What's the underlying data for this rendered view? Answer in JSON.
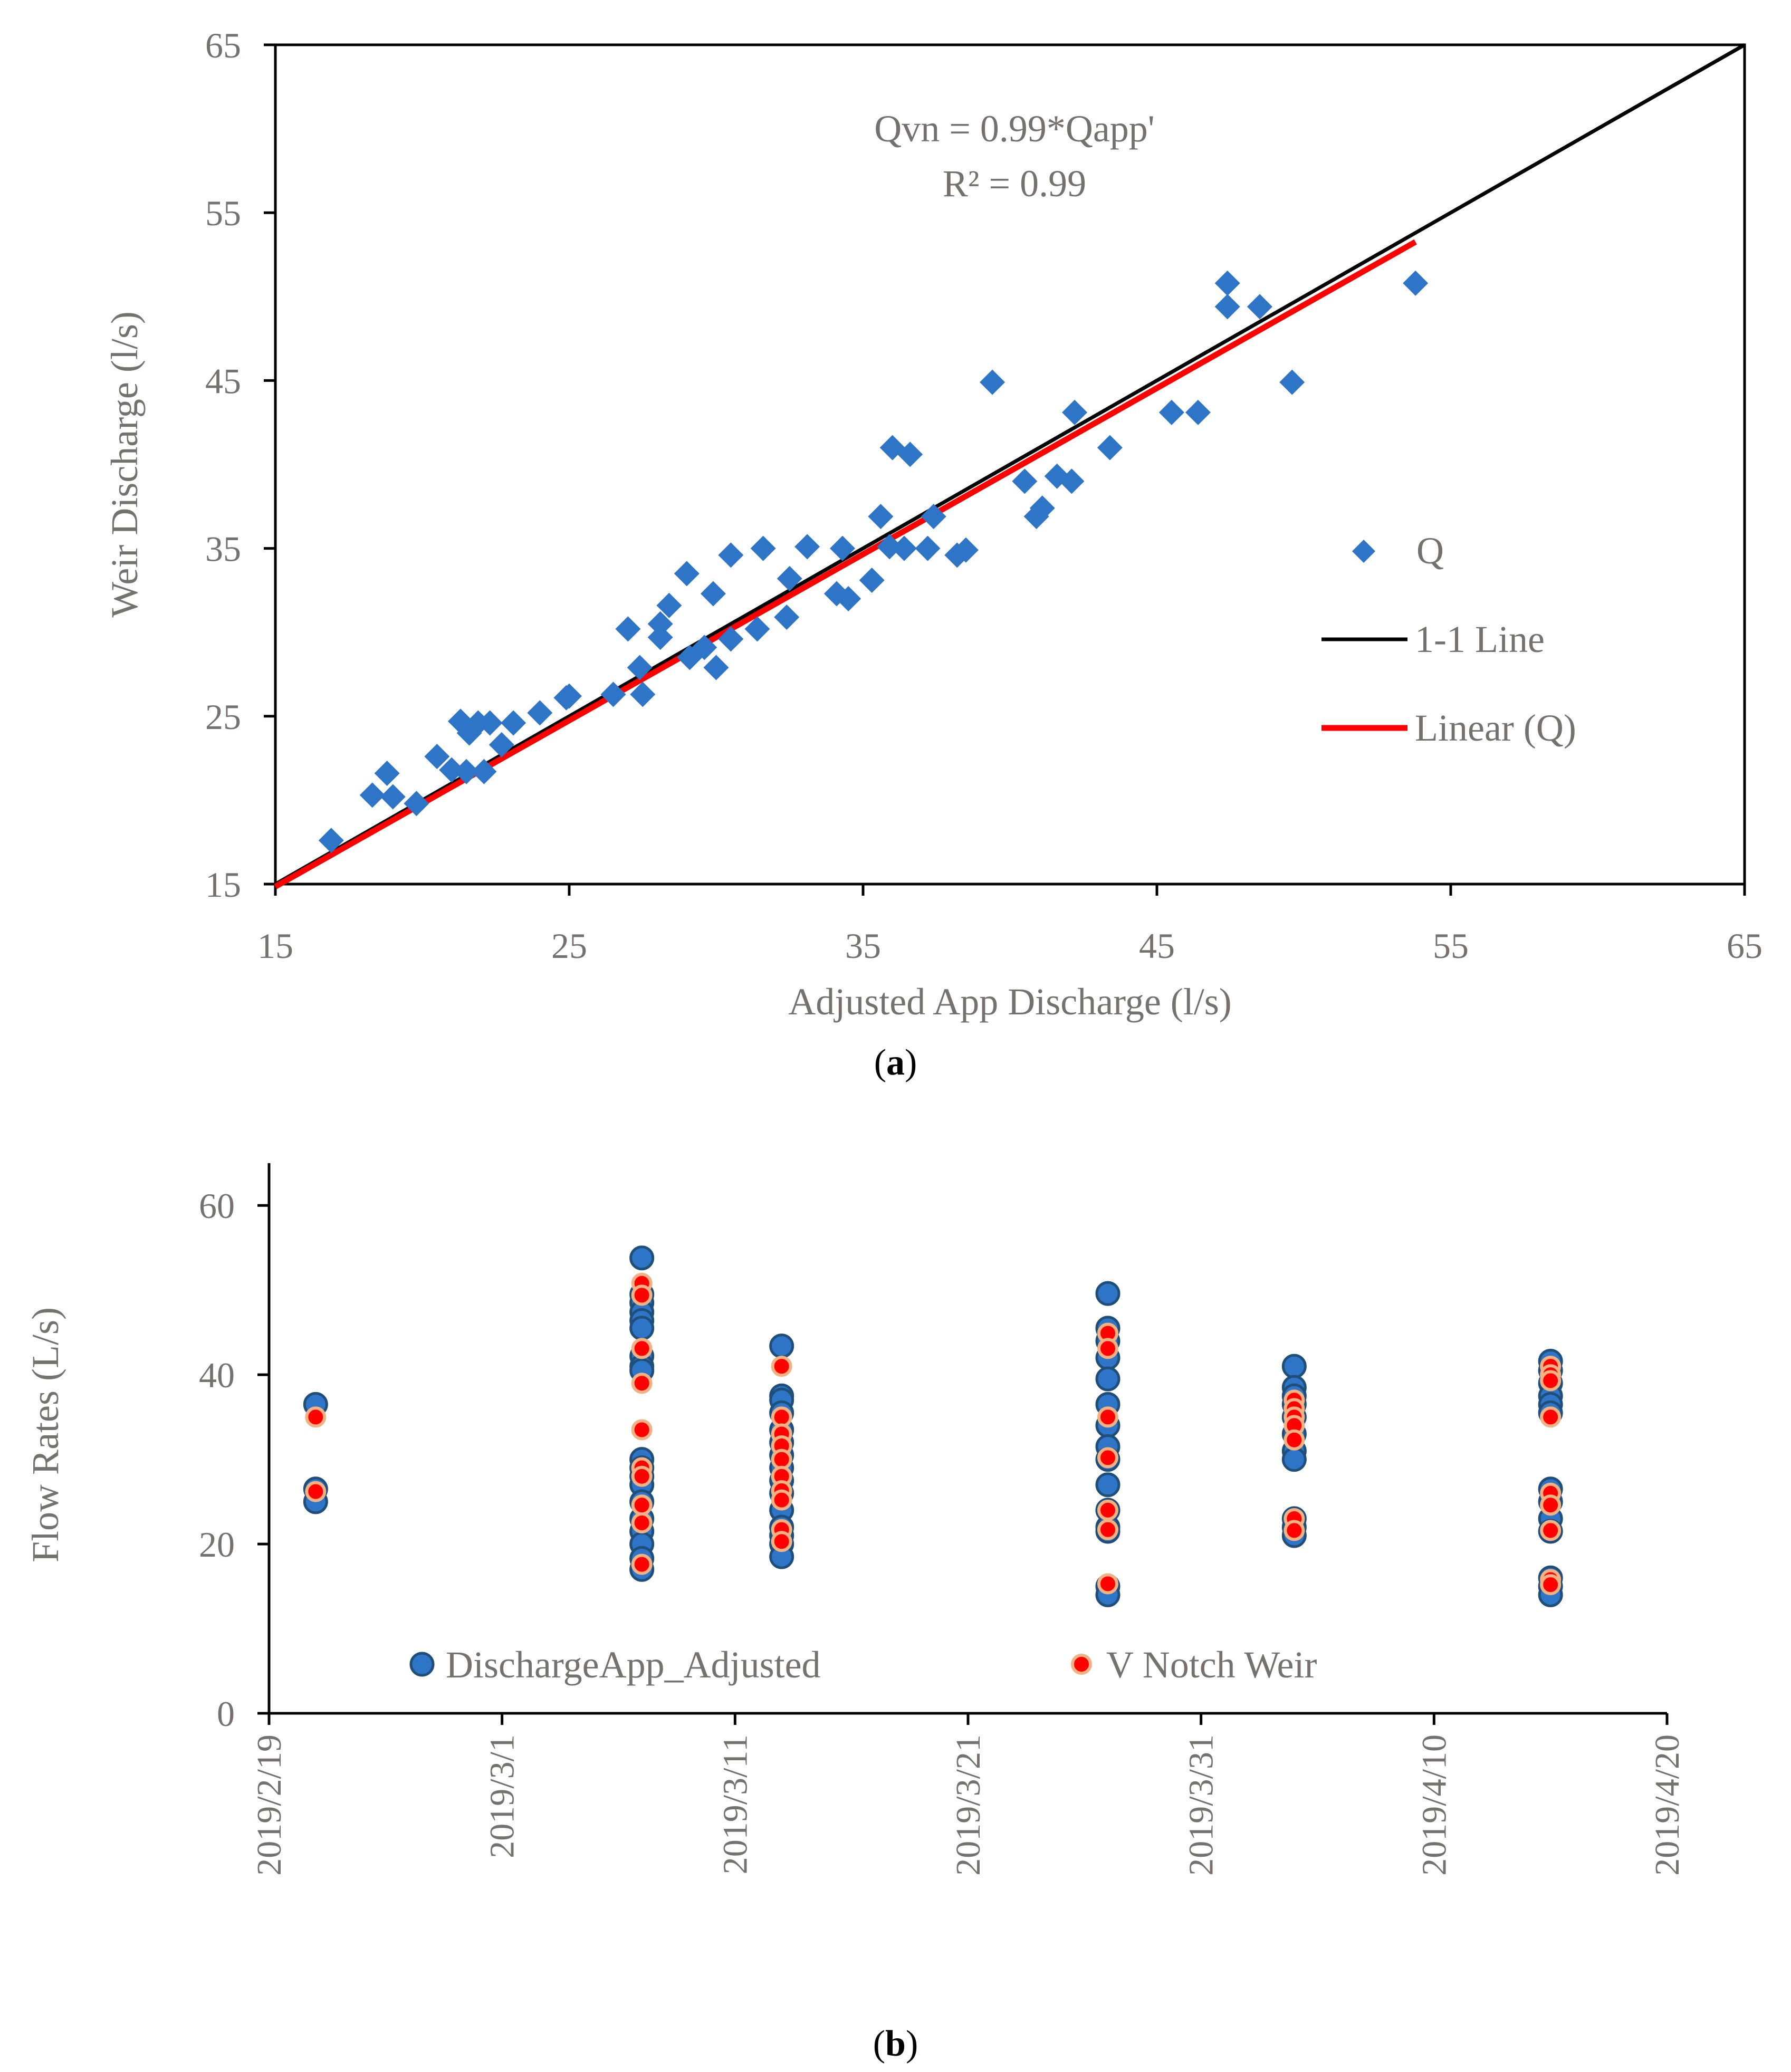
{
  "chart_data": [
    {
      "type": "scatter",
      "panel_label": "a",
      "title": "",
      "xlabel": "Adjusted App Discharge (l/s)",
      "ylabel": "Weir Discharge (l/s)",
      "xlim": [
        15,
        65
      ],
      "ylim": [
        15,
        65
      ],
      "xticks": [
        15,
        25,
        35,
        45,
        55,
        65
      ],
      "yticks": [
        15,
        25,
        35,
        45,
        55,
        65
      ],
      "xtick_labels": [
        "15",
        "25",
        "35",
        "45",
        "55",
        "65"
      ],
      "ytick_labels": [
        "15",
        "25",
        "35",
        "45",
        "55",
        "65"
      ],
      "grid": false,
      "legend_position": "right",
      "annotation": {
        "equation": "Qvn = 0.99*Qapp'",
        "r2": "R² = 0.99"
      },
      "series": [
        {
          "name": "Q",
          "kind": "scatter",
          "marker": "diamond",
          "color": "#2E75C8",
          "points": [
            [
              16.9,
              17.6
            ],
            [
              18.3,
              20.3
            ],
            [
              18.8,
              21.6
            ],
            [
              19.0,
              20.2
            ],
            [
              19.8,
              19.8
            ],
            [
              20.5,
              22.6
            ],
            [
              21.0,
              21.8
            ],
            [
              21.3,
              24.7
            ],
            [
              21.5,
              21.7
            ],
            [
              21.6,
              24.0
            ],
            [
              21.9,
              24.6
            ],
            [
              22.1,
              21.7
            ],
            [
              22.3,
              24.6
            ],
            [
              22.7,
              23.3
            ],
            [
              23.1,
              24.6
            ],
            [
              24.0,
              25.2
            ],
            [
              24.9,
              26.1
            ],
            [
              25.0,
              26.2
            ],
            [
              26.5,
              26.3
            ],
            [
              27.0,
              30.2
            ],
            [
              27.4,
              27.9
            ],
            [
              27.5,
              26.3
            ],
            [
              28.1,
              30.5
            ],
            [
              28.1,
              29.7
            ],
            [
              28.4,
              31.6
            ],
            [
              29.0,
              33.5
            ],
            [
              29.1,
              28.5
            ],
            [
              29.6,
              29.1
            ],
            [
              29.9,
              32.3
            ],
            [
              30.0,
              27.9
            ],
            [
              30.5,
              34.6
            ],
            [
              30.5,
              29.6
            ],
            [
              31.4,
              30.2
            ],
            [
              31.6,
              35.0
            ],
            [
              32.4,
              30.9
            ],
            [
              32.5,
              33.2
            ],
            [
              33.1,
              35.1
            ],
            [
              34.1,
              32.3
            ],
            [
              34.3,
              35.0
            ],
            [
              34.5,
              32.0
            ],
            [
              35.3,
              33.1
            ],
            [
              35.6,
              36.9
            ],
            [
              35.9,
              35.1
            ],
            [
              36.0,
              41.0
            ],
            [
              36.4,
              35.0
            ],
            [
              36.6,
              40.6
            ],
            [
              37.2,
              35.0
            ],
            [
              37.4,
              36.9
            ],
            [
              38.2,
              34.6
            ],
            [
              38.5,
              34.9
            ],
            [
              39.4,
              44.9
            ],
            [
              40.5,
              39.0
            ],
            [
              40.9,
              36.9
            ],
            [
              41.1,
              37.4
            ],
            [
              41.6,
              39.3
            ],
            [
              42.1,
              39.0
            ],
            [
              42.2,
              43.1
            ],
            [
              43.4,
              41.0
            ],
            [
              45.5,
              43.1
            ],
            [
              46.4,
              43.1
            ],
            [
              47.4,
              50.8
            ],
            [
              47.4,
              49.4
            ],
            [
              48.5,
              49.4
            ],
            [
              49.6,
              44.9
            ],
            [
              53.8,
              50.8
            ]
          ]
        },
        {
          "name": "1-1 Line",
          "kind": "line",
          "color": "#000000",
          "points": [
            [
              15,
              15
            ],
            [
              65,
              65
            ]
          ]
        },
        {
          "name": "Linear (Q)",
          "kind": "line",
          "color": "#FF0000",
          "points": [
            [
              15,
              14.85
            ],
            [
              53.8,
              53.26
            ]
          ]
        }
      ]
    },
    {
      "type": "scatter",
      "panel_label": "b",
      "title": "",
      "xlabel": "",
      "ylabel": "Flow Rates (L/s)",
      "xaxis_type": "date",
      "x_start_date": "2019/2/19",
      "xlim_days": [
        0,
        60
      ],
      "ylim": [
        0,
        65
      ],
      "yticks": [
        0,
        20,
        40,
        60
      ],
      "ytick_labels": [
        "0",
        "20",
        "40",
        "60"
      ],
      "xticks_days": [
        0,
        10,
        20,
        30,
        40,
        50,
        60
      ],
      "xtick_labels": [
        "2019/2/19",
        "2019/3/1",
        "2019/3/11",
        "2019/3/21",
        "2019/3/31",
        "2019/4/10",
        "2019/4/20"
      ],
      "grid": false,
      "legend_position": "bottom-inside",
      "series": [
        {
          "name": "DischargeApp_Adjusted",
          "color": "#2E75C8",
          "edge": "#1F4E79",
          "points": [
            [
              2,
              36.5
            ],
            [
              2,
              26.5
            ],
            [
              2,
              25.0
            ],
            [
              16,
              53.8
            ],
            [
              16,
              49.5
            ],
            [
              16,
              48.5
            ],
            [
              16,
              47.4
            ],
            [
              16,
              46.4
            ],
            [
              16,
              45.5
            ],
            [
              16,
              42.2
            ],
            [
              16,
              41.0
            ],
            [
              16,
              40.5
            ],
            [
              16,
              30.0
            ],
            [
              16,
              29.0
            ],
            [
              16,
              28.0
            ],
            [
              16,
              27.0
            ],
            [
              16,
              25.0
            ],
            [
              16,
              23.0
            ],
            [
              16,
              21.5
            ],
            [
              16,
              20.0
            ],
            [
              16,
              18.3
            ],
            [
              16,
              17.0
            ],
            [
              22,
              43.4
            ],
            [
              22,
              37.5
            ],
            [
              22,
              37.0
            ],
            [
              22,
              35.5
            ],
            [
              22,
              33.5
            ],
            [
              22,
              32.0
            ],
            [
              22,
              30.5
            ],
            [
              22,
              29.0
            ],
            [
              22,
              27.5
            ],
            [
              22,
              26.0
            ],
            [
              22,
              24.0
            ],
            [
              22,
              22.0
            ],
            [
              22,
              21.0
            ],
            [
              22,
              20.0
            ],
            [
              22,
              18.5
            ],
            [
              36,
              49.6
            ],
            [
              36,
              45.5
            ],
            [
              36,
              44.0
            ],
            [
              36,
              42.0
            ],
            [
              36,
              39.5
            ],
            [
              36,
              36.5
            ],
            [
              36,
              34.0
            ],
            [
              36,
              31.5
            ],
            [
              36,
              30.0
            ],
            [
              36,
              27.0
            ],
            [
              36,
              24.0
            ],
            [
              36,
              22.0
            ],
            [
              36,
              21.5
            ],
            [
              36,
              15.0
            ],
            [
              36,
              14.0
            ],
            [
              44,
              41.0
            ],
            [
              44,
              38.5
            ],
            [
              44,
              37.5
            ],
            [
              44,
              36.5
            ],
            [
              44,
              35.0
            ],
            [
              44,
              33.0
            ],
            [
              44,
              31.0
            ],
            [
              44,
              30.0
            ],
            [
              44,
              23.0
            ],
            [
              44,
              22.0
            ],
            [
              44,
              21.0
            ],
            [
              55,
              41.6
            ],
            [
              55,
              40.5
            ],
            [
              55,
              39.0
            ],
            [
              55,
              37.5
            ],
            [
              55,
              36.5
            ],
            [
              55,
              35.5
            ],
            [
              55,
              26.5
            ],
            [
              55,
              25.0
            ],
            [
              55,
              23.0
            ],
            [
              55,
              21.5
            ],
            [
              55,
              16.0
            ],
            [
              55,
              15.0
            ],
            [
              55,
              14.0
            ]
          ]
        },
        {
          "name": "V Notch Weir",
          "color": "#FF0000",
          "edge": "#F4B183",
          "points": [
            [
              2,
              35.0
            ],
            [
              2,
              26.2
            ],
            [
              16,
              50.8
            ],
            [
              16,
              49.4
            ],
            [
              16,
              43.1
            ],
            [
              16,
              39.0
            ],
            [
              16,
              33.5
            ],
            [
              16,
              29.0
            ],
            [
              16,
              28.0
            ],
            [
              16,
              24.6
            ],
            [
              16,
              22.5
            ],
            [
              16,
              17.6
            ],
            [
              22,
              41.0
            ],
            [
              22,
              35.0
            ],
            [
              22,
              33.0
            ],
            [
              22,
              31.6
            ],
            [
              22,
              30.0
            ],
            [
              22,
              28.0
            ],
            [
              22,
              26.3
            ],
            [
              22,
              25.2
            ],
            [
              22,
              21.7
            ],
            [
              22,
              20.3
            ],
            [
              36,
              44.9
            ],
            [
              36,
              43.1
            ],
            [
              36,
              35.0
            ],
            [
              36,
              30.2
            ],
            [
              36,
              24.0
            ],
            [
              36,
              21.7
            ],
            [
              36,
              15.3
            ],
            [
              44,
              37.0
            ],
            [
              44,
              36.0
            ],
            [
              44,
              35.0
            ],
            [
              44,
              34.0
            ],
            [
              44,
              32.3
            ],
            [
              44,
              23.0
            ],
            [
              44,
              21.6
            ],
            [
              55,
              41.0
            ],
            [
              55,
              40.0
            ],
            [
              55,
              39.3
            ],
            [
              55,
              35.0
            ],
            [
              55,
              26.0
            ],
            [
              55,
              24.6
            ],
            [
              55,
              21.6
            ],
            [
              55,
              15.8
            ],
            [
              55,
              15.2
            ]
          ]
        }
      ]
    }
  ],
  "captions": {
    "panel_a": "(a)",
    "panel_b": "(b)"
  }
}
